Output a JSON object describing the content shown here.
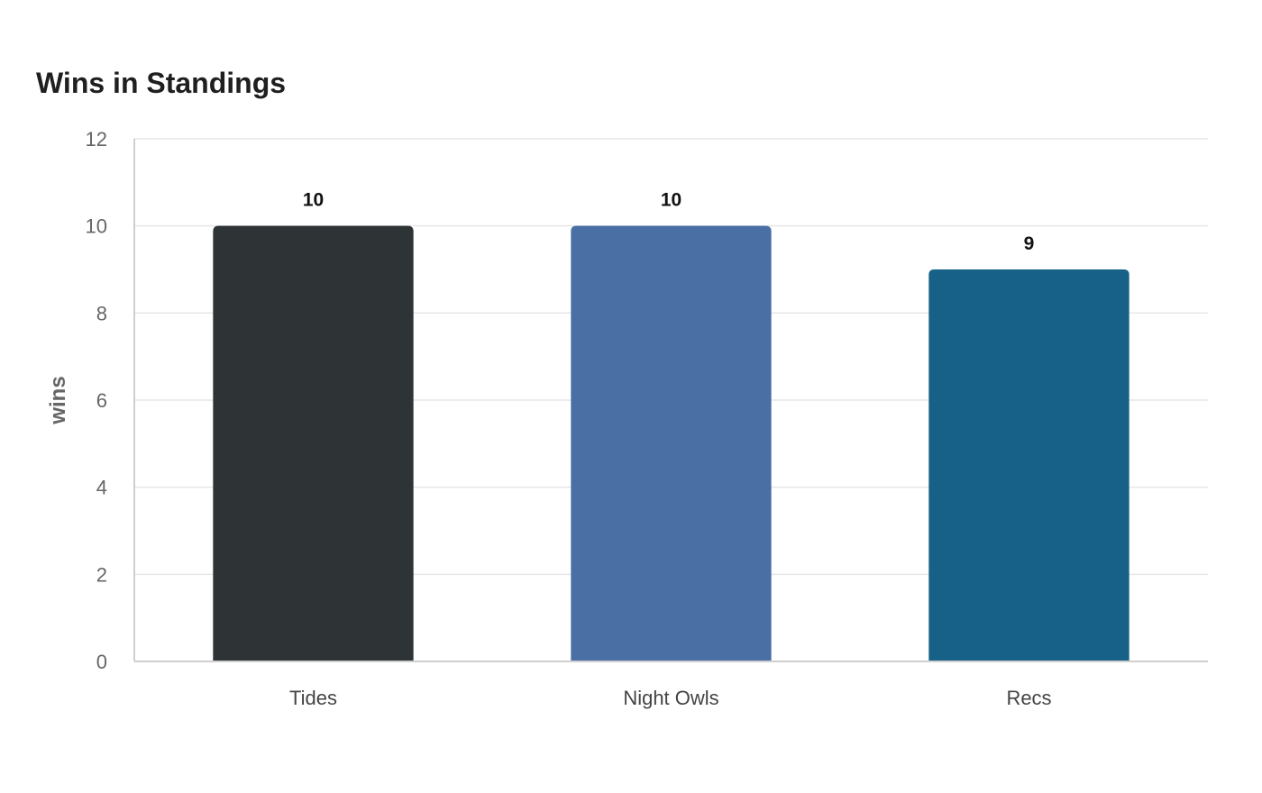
{
  "chart_data": {
    "type": "bar",
    "title": "Wins in Standings",
    "xlabel": "",
    "ylabel": "wins",
    "categories": [
      "Tides",
      "Night Owls",
      "Recs"
    ],
    "values": [
      10,
      10,
      9
    ],
    "colors": [
      "#2e3436",
      "#4a6fa5",
      "#176087"
    ],
    "ylim": [
      0,
      12
    ],
    "yticks": [
      0,
      2,
      4,
      6,
      8,
      10,
      12
    ],
    "data_labels": [
      "10",
      "10",
      "9"
    ],
    "grid": true,
    "legend": "none"
  }
}
